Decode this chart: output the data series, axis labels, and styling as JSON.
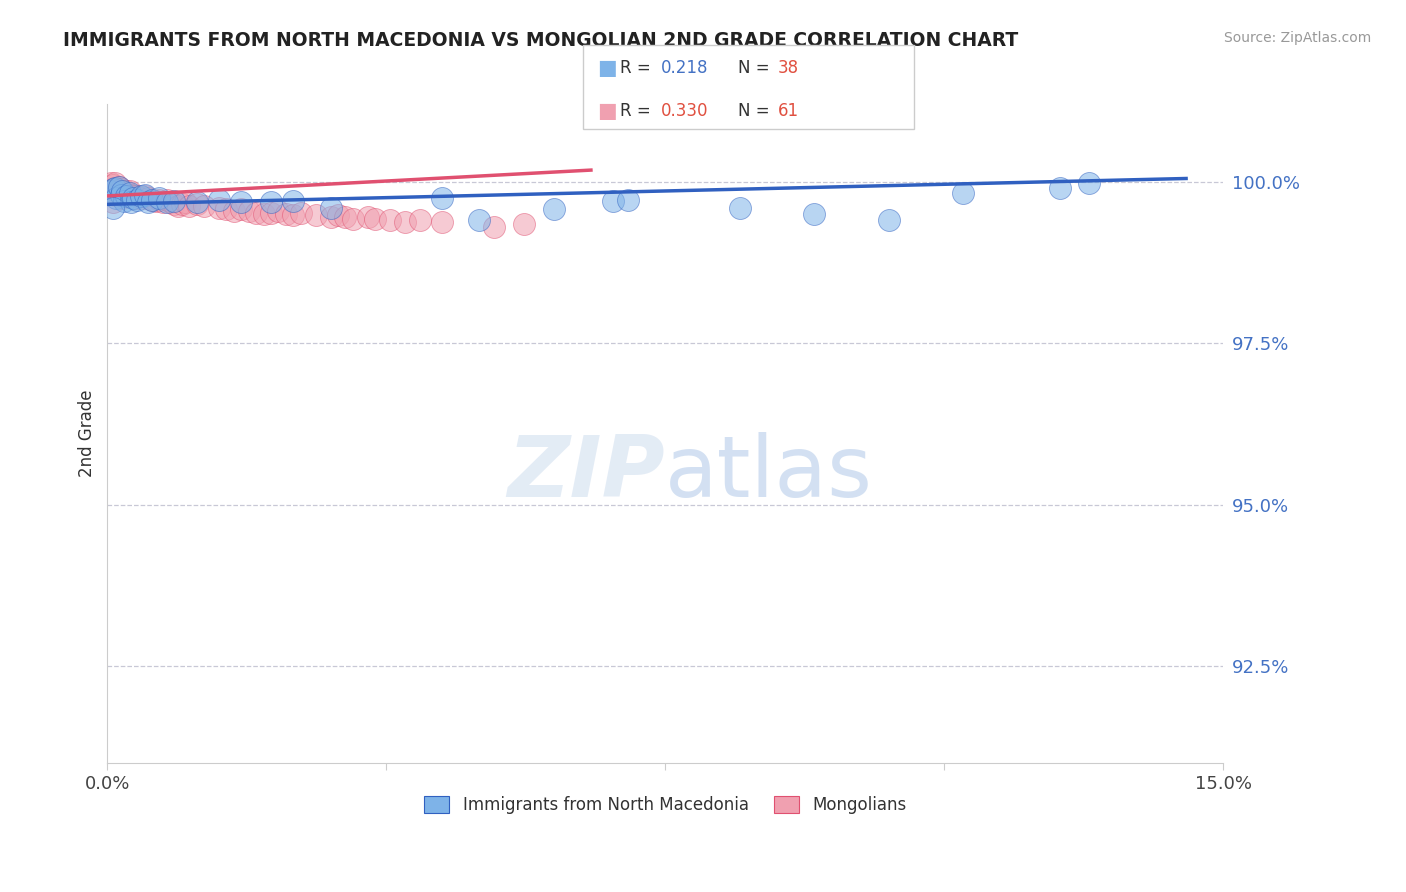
{
  "title": "IMMIGRANTS FROM NORTH MACEDONIA VS MONGOLIAN 2ND GRADE CORRELATION CHART",
  "source": "Source: ZipAtlas.com",
  "ylabel": "2nd Grade",
  "ytick_labels": [
    "100.0%",
    "97.5%",
    "95.0%",
    "92.5%"
  ],
  "ytick_values": [
    1.0,
    0.975,
    0.95,
    0.925
  ],
  "xlim": [
    0.0,
    15.0
  ],
  "ylim": [
    0.91,
    1.012
  ],
  "legend_blue_label": "Immigrants from North Macedonia",
  "legend_pink_label": "Mongolians",
  "blue_color": "#7EB3E8",
  "pink_color": "#F0A0B0",
  "trend_blue_color": "#3060C0",
  "trend_pink_color": "#E05070",
  "blue_scatter": [
    [
      0.05,
      0.9985
    ],
    [
      0.08,
      0.9988
    ],
    [
      0.1,
      0.999
    ],
    [
      0.12,
      0.9975
    ],
    [
      0.15,
      0.9992
    ],
    [
      0.18,
      0.998
    ],
    [
      0.2,
      0.9985
    ],
    [
      0.22,
      0.997
    ],
    [
      0.25,
      0.9978
    ],
    [
      0.3,
      0.9982
    ],
    [
      0.32,
      0.9968
    ],
    [
      0.35,
      0.9975
    ],
    [
      0.4,
      0.9972
    ],
    [
      0.45,
      0.9978
    ],
    [
      0.5,
      0.998
    ],
    [
      0.55,
      0.9968
    ],
    [
      0.6,
      0.9972
    ],
    [
      0.7,
      0.9975
    ],
    [
      0.8,
      0.9968
    ],
    [
      0.9,
      0.997
    ],
    [
      1.2,
      0.9968
    ],
    [
      1.5,
      0.9972
    ],
    [
      1.8,
      0.9968
    ],
    [
      2.2,
      0.9968
    ],
    [
      2.5,
      0.997
    ],
    [
      3.0,
      0.996
    ],
    [
      4.5,
      0.9975
    ],
    [
      5.0,
      0.994
    ],
    [
      6.0,
      0.9958
    ],
    [
      6.8,
      0.997
    ],
    [
      7.0,
      0.9972
    ],
    [
      8.5,
      0.996
    ],
    [
      9.5,
      0.995
    ],
    [
      10.5,
      0.994
    ],
    [
      13.2,
      0.9998
    ],
    [
      12.8,
      0.999
    ],
    [
      11.5,
      0.9982
    ],
    [
      0.08,
      0.996
    ]
  ],
  "pink_scatter": [
    [
      0.05,
      0.9998
    ],
    [
      0.07,
      0.9995
    ],
    [
      0.09,
      0.999
    ],
    [
      0.1,
      0.9998
    ],
    [
      0.12,
      0.9988
    ],
    [
      0.14,
      0.9985
    ],
    [
      0.15,
      0.9992
    ],
    [
      0.18,
      0.9988
    ],
    [
      0.2,
      0.9985
    ],
    [
      0.22,
      0.998
    ],
    [
      0.25,
      0.9985
    ],
    [
      0.28,
      0.9982
    ],
    [
      0.3,
      0.9985
    ],
    [
      0.32,
      0.998
    ],
    [
      0.35,
      0.9978
    ],
    [
      0.38,
      0.9975
    ],
    [
      0.4,
      0.9978
    ],
    [
      0.45,
      0.9975
    ],
    [
      0.5,
      0.9978
    ],
    [
      0.55,
      0.9975
    ],
    [
      0.6,
      0.9972
    ],
    [
      0.65,
      0.997
    ],
    [
      0.7,
      0.9972
    ],
    [
      0.75,
      0.9968
    ],
    [
      0.8,
      0.9972
    ],
    [
      0.85,
      0.9968
    ],
    [
      0.9,
      0.9965
    ],
    [
      0.95,
      0.9962
    ],
    [
      1.0,
      0.9965
    ],
    [
      1.05,
      0.9968
    ],
    [
      1.1,
      0.9962
    ],
    [
      1.2,
      0.9965
    ],
    [
      1.3,
      0.9962
    ],
    [
      1.5,
      0.996
    ],
    [
      1.6,
      0.9958
    ],
    [
      1.7,
      0.9955
    ],
    [
      1.8,
      0.9958
    ],
    [
      1.9,
      0.9955
    ],
    [
      2.0,
      0.9952
    ],
    [
      2.1,
      0.995
    ],
    [
      2.2,
      0.9952
    ],
    [
      2.3,
      0.9955
    ],
    [
      2.4,
      0.995
    ],
    [
      2.5,
      0.9948
    ],
    [
      2.6,
      0.9952
    ],
    [
      2.8,
      0.9948
    ],
    [
      3.0,
      0.9945
    ],
    [
      3.1,
      0.9948
    ],
    [
      3.2,
      0.9945
    ],
    [
      3.3,
      0.9942
    ],
    [
      3.5,
      0.9945
    ],
    [
      3.6,
      0.9942
    ],
    [
      3.8,
      0.994
    ],
    [
      4.0,
      0.9938
    ],
    [
      4.2,
      0.994
    ],
    [
      4.5,
      0.9938
    ],
    [
      5.2,
      0.993
    ],
    [
      5.6,
      0.9935
    ],
    [
      0.1,
      0.998
    ],
    [
      0.15,
      0.9978
    ],
    [
      0.2,
      0.9975
    ],
    [
      0.08,
      0.9968
    ]
  ],
  "blue_trend_x": [
    0.0,
    14.5
  ],
  "blue_trend_y": [
    0.9965,
    1.0005
  ],
  "pink_trend_x": [
    0.0,
    6.5
  ],
  "pink_trend_y": [
    0.9978,
    1.0018
  ],
  "watermark_zip": "ZIP",
  "watermark_atlas": "atlas"
}
